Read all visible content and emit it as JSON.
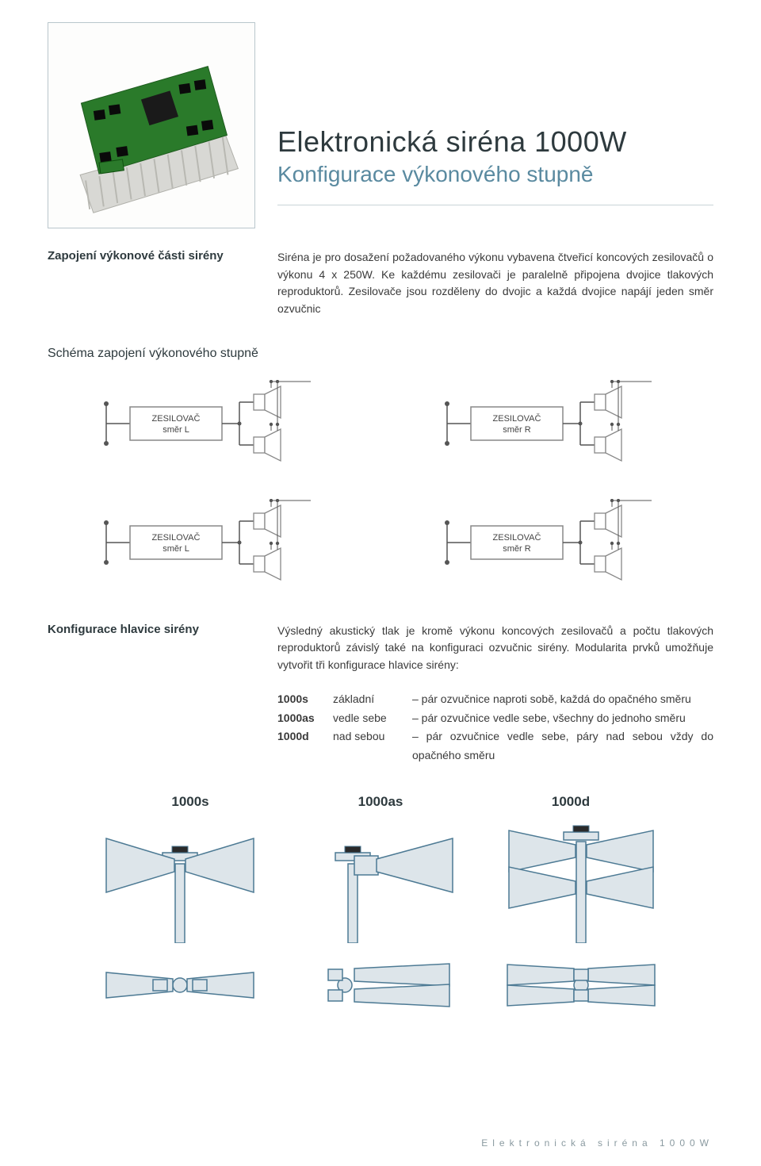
{
  "title": {
    "main": "Elektronická siréna 1000W",
    "sub": "Konfigurace výkonového stupně"
  },
  "section1": {
    "label": "Zapojení výkonové části sirény",
    "body": "Siréna je pro dosažení požadovaného výkonu vybavena čtveřicí koncových zesilovačů o výkonu 4 x 250W. Ke každému zesilovači je paralelně připojena dvojice tlakových reproduktorů. Zesilovače jsou rozděleny do dvojic a každá dvojice napájí jeden směr ozvučnic"
  },
  "schema": {
    "heading": "Schéma zapojení výkonového stupně",
    "amp_label_title": "ZESILOVAČ",
    "dir_L": "směr L",
    "dir_R": "směr R",
    "box_stroke": "#888888",
    "box_fill": "#ffffff",
    "wire_color": "#555555",
    "text_color": "#444444"
  },
  "section2": {
    "label": "Konfigurace hlavice sirény",
    "body": "Výsledný akustický tlak je kromě výkonu koncových zesilovačů a počtu tlakových reproduktorů závislý také na konfiguraci ozvučnic sirény. Modularita prvků umožňuje vytvořit tři konfigurace hlavice sirény:"
  },
  "config_rows": [
    {
      "code": "1000s",
      "name": "základní",
      "desc": "– pár ozvučnice naproti sobě, každá do opačného směru"
    },
    {
      "code": "1000as",
      "name": "vedle sebe",
      "desc": "– pár ozvučnice vedle sebe, všechny do jednoho směru"
    },
    {
      "code": "1000d",
      "name": "nad sebou",
      "desc": "– pár ozvučnice vedle sebe, páry nad sebou vždy do opačného směru"
    }
  ],
  "horn_headings": [
    "1000s",
    "1000as",
    "1000d"
  ],
  "horn_style": {
    "fill": "#dde5ea",
    "stroke": "#4d7a94",
    "stroke_width": 1.5
  },
  "footer": "Elektronická  siréna  1000W"
}
